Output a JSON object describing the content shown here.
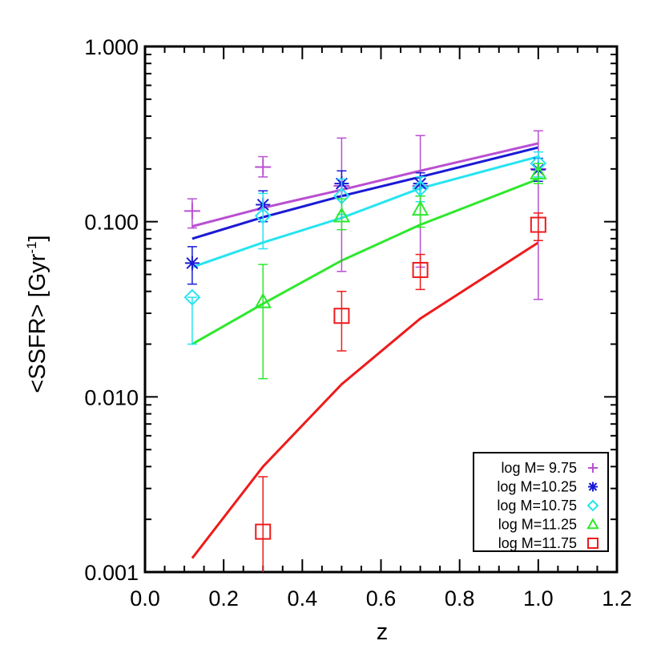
{
  "chart_data": {
    "type": "scatter",
    "title": "",
    "xlabel": "z",
    "ylabel_main": "<SSFR> [Gyr",
    "ylabel_sup": "-1",
    "ylabel_end": "]",
    "xlim": [
      0.0,
      1.2
    ],
    "ylim": [
      0.001,
      1.0
    ],
    "yscale": "log",
    "x_ticks": [
      "0.0",
      "0.2",
      "0.4",
      "0.6",
      "0.8",
      "1.0",
      "1.2"
    ],
    "y_ticks": [
      "0.001",
      "0.010",
      "0.100",
      "1.000"
    ],
    "legend_position": "bottom-right",
    "series": [
      {
        "name": "log M= 9.75",
        "color": "#b94fd1",
        "marker": "plus",
        "points": [
          {
            "x": 0.12,
            "y": 0.115,
            "lo": 0.092,
            "hi": 0.135
          },
          {
            "x": 0.3,
            "y": 0.205,
            "lo": 0.18,
            "hi": 0.235
          },
          {
            "x": 0.5,
            "y": 0.16,
            "lo": 0.052,
            "hi": 0.3
          },
          {
            "x": 0.7,
            "y": 0.16,
            "lo": 0.055,
            "hi": 0.31
          },
          {
            "x": 1.0,
            "y": 0.2,
            "lo": 0.036,
            "hi": 0.33
          }
        ],
        "model": [
          [
            0.12,
            0.094
          ],
          [
            0.3,
            0.12
          ],
          [
            0.5,
            0.152
          ],
          [
            0.7,
            0.195
          ],
          [
            1.0,
            0.28
          ]
        ]
      },
      {
        "name": "log M=10.25",
        "color": "#1a1ad6",
        "marker": "asterisk",
        "points": [
          {
            "x": 0.12,
            "y": 0.058,
            "lo": 0.044,
            "hi": 0.072
          },
          {
            "x": 0.3,
            "y": 0.125,
            "lo": 0.1,
            "hi": 0.15
          },
          {
            "x": 0.5,
            "y": 0.165,
            "lo": 0.14,
            "hi": 0.195
          },
          {
            "x": 0.7,
            "y": 0.165,
            "lo": 0.14,
            "hi": 0.19
          },
          {
            "x": 1.0,
            "y": 0.198,
            "lo": 0.17,
            "hi": 0.23
          }
        ],
        "model": [
          [
            0.12,
            0.08
          ],
          [
            0.3,
            0.106
          ],
          [
            0.5,
            0.14
          ],
          [
            0.7,
            0.18
          ],
          [
            1.0,
            0.265
          ]
        ]
      },
      {
        "name": "log M=10.75",
        "color": "#26e4f0",
        "marker": "diamond",
        "points": [
          {
            "x": 0.12,
            "y": 0.037,
            "lo": 0.02,
            "hi": 0.037
          },
          {
            "x": 0.3,
            "y": 0.108,
            "lo": 0.07,
            "hi": 0.145
          },
          {
            "x": 0.5,
            "y": 0.14,
            "lo": 0.11,
            "hi": 0.175
          },
          {
            "x": 0.7,
            "y": 0.155,
            "lo": 0.13,
            "hi": 0.18
          },
          {
            "x": 1.0,
            "y": 0.215,
            "lo": 0.18,
            "hi": 0.25
          }
        ],
        "model": [
          [
            0.12,
            0.055
          ],
          [
            0.3,
            0.076
          ],
          [
            0.5,
            0.105
          ],
          [
            0.7,
            0.155
          ],
          [
            1.0,
            0.235
          ]
        ]
      },
      {
        "name": "log M=11.25",
        "color": "#2ee82e",
        "marker": "triangle",
        "points": [
          {
            "x": 0.3,
            "y": 0.035,
            "lo": 0.0127,
            "hi": 0.057
          },
          {
            "x": 0.5,
            "y": 0.108,
            "lo": 0.09,
            "hi": 0.135
          },
          {
            "x": 0.7,
            "y": 0.118,
            "lo": 0.093,
            "hi": 0.14
          },
          {
            "x": 1.0,
            "y": 0.19,
            "lo": 0.165,
            "hi": 0.215
          }
        ],
        "model": [
          [
            0.12,
            0.02
          ],
          [
            0.3,
            0.034
          ],
          [
            0.5,
            0.06
          ],
          [
            0.7,
            0.096
          ],
          [
            1.0,
            0.175
          ]
        ]
      },
      {
        "name": "log M=11.75",
        "color": "#ee1b1b",
        "marker": "square",
        "points": [
          {
            "x": 0.3,
            "y": 0.0017,
            "lo": 0.00095,
            "hi": 0.0035
          },
          {
            "x": 0.5,
            "y": 0.029,
            "lo": 0.0183,
            "hi": 0.04
          },
          {
            "x": 0.7,
            "y": 0.053,
            "lo": 0.041,
            "hi": 0.065
          },
          {
            "x": 1.0,
            "y": 0.096,
            "lo": 0.078,
            "hi": 0.112
          }
        ],
        "model": [
          [
            0.12,
            0.0012
          ],
          [
            0.3,
            0.004
          ],
          [
            0.5,
            0.0118
          ],
          [
            0.7,
            0.028
          ],
          [
            1.0,
            0.076
          ]
        ]
      }
    ]
  }
}
